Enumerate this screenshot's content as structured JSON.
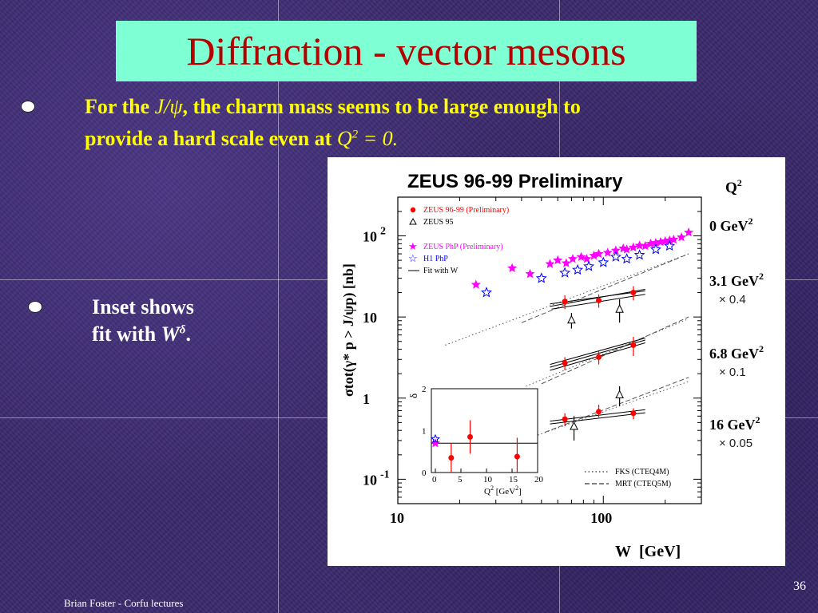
{
  "slide": {
    "title": "Diffraction - vector mesons",
    "bullet1": {
      "t1": "For the ",
      "jpsi": "J/ψ",
      "t2": ", the charm mass seems to be large enough to",
      "t3": "provide a hard scale even at ",
      "q": "Q",
      "qexp": "2",
      "t4": " = 0."
    },
    "bullet2": {
      "t1": "Inset shows",
      "t2": "fit with ",
      "w": "W",
      "wexp": "δ",
      "t3": "."
    },
    "footer_left": "Brian Foster - Corfu lectures",
    "page_number": "36"
  },
  "colors": {
    "background": "#3b2a6e",
    "title_box": "#7fffd4",
    "title_text": "#b30000",
    "bullet1_text": "#ffff00",
    "bullet2_text": "#ffffff",
    "zeus_9699": "#ff0000",
    "zeus_php": "#ff00ff",
    "h1_php": "#0000ff"
  },
  "chart_data": {
    "type": "scatter",
    "title": "ZEUS 96-99 Preliminary",
    "xlabel": "W [GeV]",
    "xlabel_w": "W",
    "xlabel_unit": "[GeV]",
    "ylabel": "σtot(γ* p > J/ψp) [nb]",
    "x_scale": "log",
    "y_scale": "log",
    "xlim": [
      10,
      300
    ],
    "ylim": [
      0.05,
      300
    ],
    "x_ticks": [
      "10",
      "100"
    ],
    "y_ticks": [
      {
        "base": "10",
        "exp": "2"
      },
      {
        "base": "10",
        "exp": ""
      },
      {
        "base": "1",
        "exp": ""
      },
      {
        "base": "10",
        "exp": "-1"
      }
    ],
    "q2_header": "Q",
    "q2_header_exp": "2",
    "legend": {
      "zeus9699": "ZEUS 96-99 (Preliminary)",
      "zeus95": "ZEUS 95",
      "zeus_php": "ZEUS PhP (Preliminary)",
      "h1_php": "H1 PhP",
      "fit": "Fit with W",
      "fks": "FKS (CTEQ4M)",
      "mrt": "MRT (CTEQ5M)"
    },
    "q2_bins": [
      {
        "label": "0 GeV",
        "exp": "2",
        "scale": ""
      },
      {
        "label": "3.1 GeV",
        "exp": "2",
        "scale": "× 0.4"
      },
      {
        "label": "6.8 GeV",
        "exp": "2",
        "scale": "× 0.1"
      },
      {
        "label": "16 GeV",
        "exp": "2",
        "scale": "× 0.05"
      }
    ],
    "series": [
      {
        "name": "ZEUS PhP (Preliminary)",
        "marker": "star-filled",
        "color": "#ff00ff",
        "x": [
          24,
          36,
          44,
          55,
          60,
          66,
          71,
          78,
          83,
          90,
          95,
          105,
          115,
          125,
          130,
          140,
          150,
          160,
          170,
          180,
          190,
          200,
          210,
          220,
          240,
          260
        ],
        "y": [
          25,
          40,
          34,
          45,
          50,
          46,
          52,
          55,
          52,
          57,
          60,
          62,
          66,
          70,
          68,
          72,
          76,
          75,
          80,
          82,
          84,
          86,
          88,
          90,
          96,
          110
        ]
      },
      {
        "name": "H1 PhP",
        "marker": "star-open",
        "color": "#0000ff",
        "x": [
          27,
          50,
          65,
          75,
          85,
          100,
          115,
          130,
          150,
          180,
          210
        ],
        "y": [
          20,
          30,
          35,
          38,
          42,
          47,
          55,
          52,
          58,
          68,
          75
        ]
      },
      {
        "name": "ZEUS 96-99 (Preliminary) 3.1 GeV2",
        "marker": "circle",
        "color": "#ff0000",
        "x": [
          65,
          95,
          140
        ],
        "y": [
          15.5,
          16,
          20
        ],
        "err_low": [
          3,
          3,
          4
        ],
        "err_high": [
          3,
          3,
          4
        ]
      },
      {
        "name": "ZEUS 95 3.1 GeV2",
        "marker": "triangle-open",
        "color": "#000000",
        "x": [
          70,
          120
        ],
        "y": [
          9.2,
          12.5
        ],
        "err_low": [
          2,
          4
        ],
        "err_high": [
          2,
          4
        ]
      },
      {
        "name": "ZEUS 96-99 (Preliminary) 6.8 GeV2",
        "marker": "circle",
        "color": "#ff0000",
        "x": [
          65,
          95,
          140
        ],
        "y": [
          2.7,
          3.2,
          4.5
        ],
        "err_low": [
          0.5,
          0.6,
          1.2
        ],
        "err_high": [
          0.5,
          0.6,
          1.2
        ]
      },
      {
        "name": "ZEUS 96-99 (Preliminary) 16 GeV2",
        "marker": "circle",
        "color": "#ff0000",
        "x": [
          65,
          95,
          140
        ],
        "y": [
          0.55,
          0.68,
          0.65
        ],
        "err_low": [
          0.1,
          0.1,
          0.1
        ],
        "err_high": [
          0.1,
          0.15,
          0.1
        ]
      },
      {
        "name": "ZEUS 95 6.8 GeV2",
        "marker": "triangle-open",
        "color": "#000000",
        "x": [
          72,
          120
        ],
        "y": [
          0.45,
          1.1
        ],
        "err_low": [
          0.15,
          0.3
        ],
        "err_high": [
          0.15,
          0.3
        ]
      }
    ],
    "inset": {
      "xlabel_q": "Q",
      "xlabel_exp": "2",
      "xlabel_unit": "[GeV",
      "xlabel_unit_exp": "2",
      "xlabel_close": "]",
      "ylabel": "δ",
      "xlim": [
        0,
        20
      ],
      "ylim": [
        0,
        2
      ],
      "x_ticks": [
        "0",
        "5",
        "10",
        "15",
        "20"
      ],
      "y_ticks": [
        "0",
        "1",
        "2"
      ],
      "fit_level": 0.7,
      "points": [
        {
          "x": 0,
          "y": 0.7,
          "color": "#ff00ff",
          "marker": "star-filled"
        },
        {
          "x": 0,
          "y": 0.8,
          "color": "#0000ff",
          "marker": "star-open"
        },
        {
          "x": 3.1,
          "y": 0.35,
          "err": 0.35,
          "color": "#ff0000",
          "marker": "circle"
        },
        {
          "x": 6.8,
          "y": 0.85,
          "err": 0.4,
          "color": "#ff0000",
          "marker": "circle"
        },
        {
          "x": 16,
          "y": 0.38,
          "err": 0.45,
          "color": "#ff0000",
          "marker": "circle"
        }
      ]
    }
  }
}
